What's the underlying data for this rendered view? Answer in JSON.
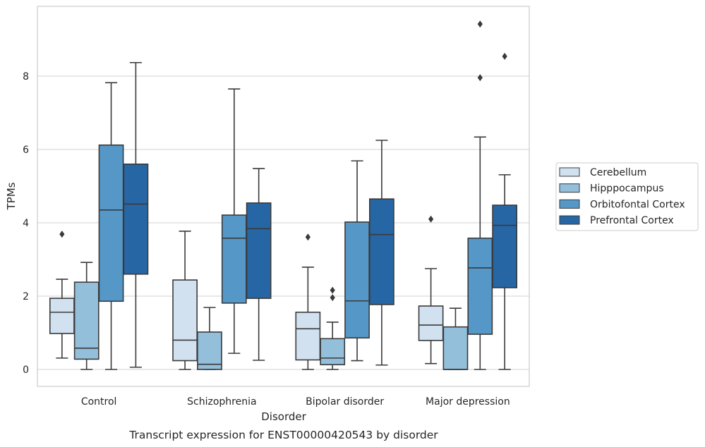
{
  "caption": "Transcript expression for ENST00000420543 by disorder",
  "chart_data": {
    "type": "box",
    "xlabel": "Disorder",
    "ylabel": "TPMs",
    "ylim": [
      -0.45,
      9.85
    ],
    "yticks": [
      0,
      2,
      4,
      6,
      8
    ],
    "grid": "horizontal",
    "legend_position": "outside-right",
    "categories": [
      "Control",
      "Schizophrenia",
      "Bipolar disorder",
      "Major depression"
    ],
    "series": [
      {
        "name": "Cerebellum",
        "color": "#d1e1f0",
        "boxes": [
          {
            "whislo": 0.31,
            "q1": 0.98,
            "med": 1.56,
            "q3": 1.94,
            "whishi": 2.46,
            "fliers": [
              3.69
            ]
          },
          {
            "whislo": 0.0,
            "q1": 0.24,
            "med": 0.8,
            "q3": 2.44,
            "whishi": 3.77,
            "fliers": []
          },
          {
            "whislo": 0.0,
            "q1": 0.26,
            "med": 1.11,
            "q3": 1.56,
            "whishi": 2.79,
            "fliers": [
              3.61
            ]
          },
          {
            "whislo": 0.16,
            "q1": 0.79,
            "med": 1.21,
            "q3": 1.73,
            "whishi": 2.75,
            "fliers": [
              4.1
            ]
          }
        ]
      },
      {
        "name": "Hipppocampus",
        "color": "#93bfdb",
        "boxes": [
          {
            "whislo": 0.0,
            "q1": 0.28,
            "med": 0.58,
            "q3": 2.38,
            "whishi": 2.92,
            "fliers": []
          },
          {
            "whislo": 0.0,
            "q1": 0.0,
            "med": 0.14,
            "q3": 1.02,
            "whishi": 1.69,
            "fliers": []
          },
          {
            "whislo": 0.0,
            "q1": 0.13,
            "med": 0.31,
            "q3": 0.84,
            "whishi": 1.29,
            "fliers": [
              1.96,
              2.16
            ]
          },
          {
            "whislo": 0.0,
            "q1": 0.0,
            "med": 0.0,
            "q3": 1.16,
            "whishi": 1.67,
            "fliers": []
          }
        ]
      },
      {
        "name": "Orbitofontal Cortex",
        "color": "#5598c8",
        "boxes": [
          {
            "whislo": 0.0,
            "q1": 1.86,
            "med": 4.35,
            "q3": 6.12,
            "whishi": 7.82,
            "fliers": []
          },
          {
            "whislo": 0.44,
            "q1": 1.81,
            "med": 3.58,
            "q3": 4.21,
            "whishi": 7.65,
            "fliers": []
          },
          {
            "whislo": 0.24,
            "q1": 0.86,
            "med": 1.87,
            "q3": 4.02,
            "whishi": 5.69,
            "fliers": []
          },
          {
            "whislo": 0.0,
            "q1": 0.96,
            "med": 2.77,
            "q3": 3.58,
            "whishi": 6.34,
            "fliers": [
              7.96,
              9.42
            ]
          }
        ]
      },
      {
        "name": "Prefrontal Cortex",
        "color": "#2766a4",
        "boxes": [
          {
            "whislo": 0.06,
            "q1": 2.6,
            "med": 4.51,
            "q3": 5.6,
            "whishi": 8.37,
            "fliers": []
          },
          {
            "whislo": 0.25,
            "q1": 1.94,
            "med": 3.84,
            "q3": 4.54,
            "whishi": 5.48,
            "fliers": []
          },
          {
            "whislo": 0.12,
            "q1": 1.77,
            "med": 3.68,
            "q3": 4.65,
            "whishi": 6.25,
            "fliers": []
          },
          {
            "whislo": 0.0,
            "q1": 2.23,
            "med": 3.93,
            "q3": 4.48,
            "whishi": 5.31,
            "fliers": [
              8.54
            ]
          }
        ]
      }
    ]
  }
}
